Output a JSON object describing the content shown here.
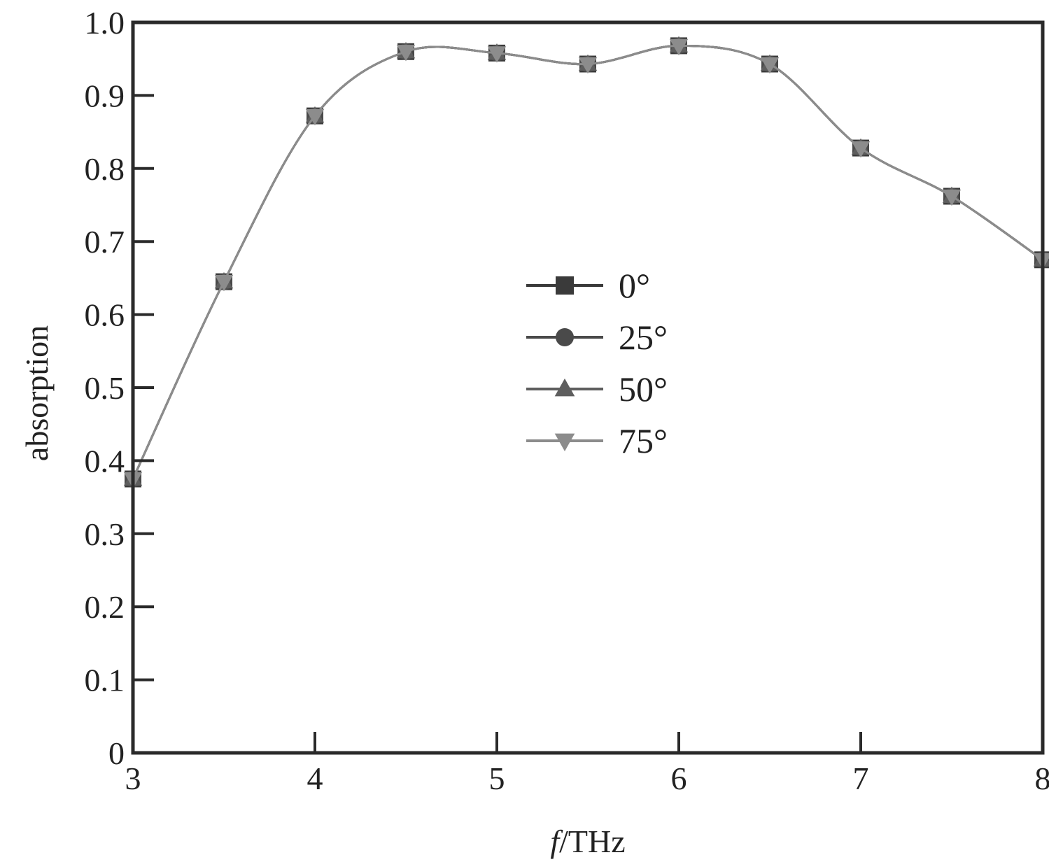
{
  "chart_data": {
    "type": "line",
    "title": "",
    "xlabel_italic": "f",
    "xlabel_rest": "/THz",
    "ylabel": "absorption",
    "xlim": [
      3,
      8
    ],
    "ylim": [
      0,
      1.0
    ],
    "x_ticks": [
      "3",
      "4",
      "5",
      "6",
      "7",
      "8"
    ],
    "y_ticks": [
      "0",
      "0.1",
      "0.2",
      "0.3",
      "0.4",
      "0.5",
      "0.6",
      "0.7",
      "0.8",
      "0.9",
      "1.0"
    ],
    "grid": false,
    "legend_position": "center",
    "x": [
      3.0,
      3.5,
      4.0,
      4.5,
      5.0,
      5.5,
      6.0,
      6.5,
      7.0,
      7.5,
      8.0
    ],
    "series": [
      {
        "name": "0°",
        "marker": "square",
        "color": "#3a3a3a",
        "values": [
          0.375,
          0.645,
          0.872,
          0.96,
          0.958,
          0.943,
          0.968,
          0.943,
          0.828,
          0.762,
          0.675
        ]
      },
      {
        "name": "25°",
        "marker": "circle",
        "color": "#4a4a4a",
        "values": [
          0.375,
          0.645,
          0.872,
          0.96,
          0.958,
          0.943,
          0.968,
          0.943,
          0.828,
          0.762,
          0.675
        ]
      },
      {
        "name": "50°",
        "marker": "triangle-up",
        "color": "#5e5e5e",
        "values": [
          0.375,
          0.645,
          0.872,
          0.96,
          0.958,
          0.943,
          0.968,
          0.943,
          0.828,
          0.762,
          0.675
        ]
      },
      {
        "name": "75°",
        "marker": "triangle-down",
        "color": "#8c8c8c",
        "values": [
          0.375,
          0.645,
          0.872,
          0.96,
          0.958,
          0.943,
          0.968,
          0.943,
          0.828,
          0.762,
          0.675
        ]
      }
    ]
  }
}
